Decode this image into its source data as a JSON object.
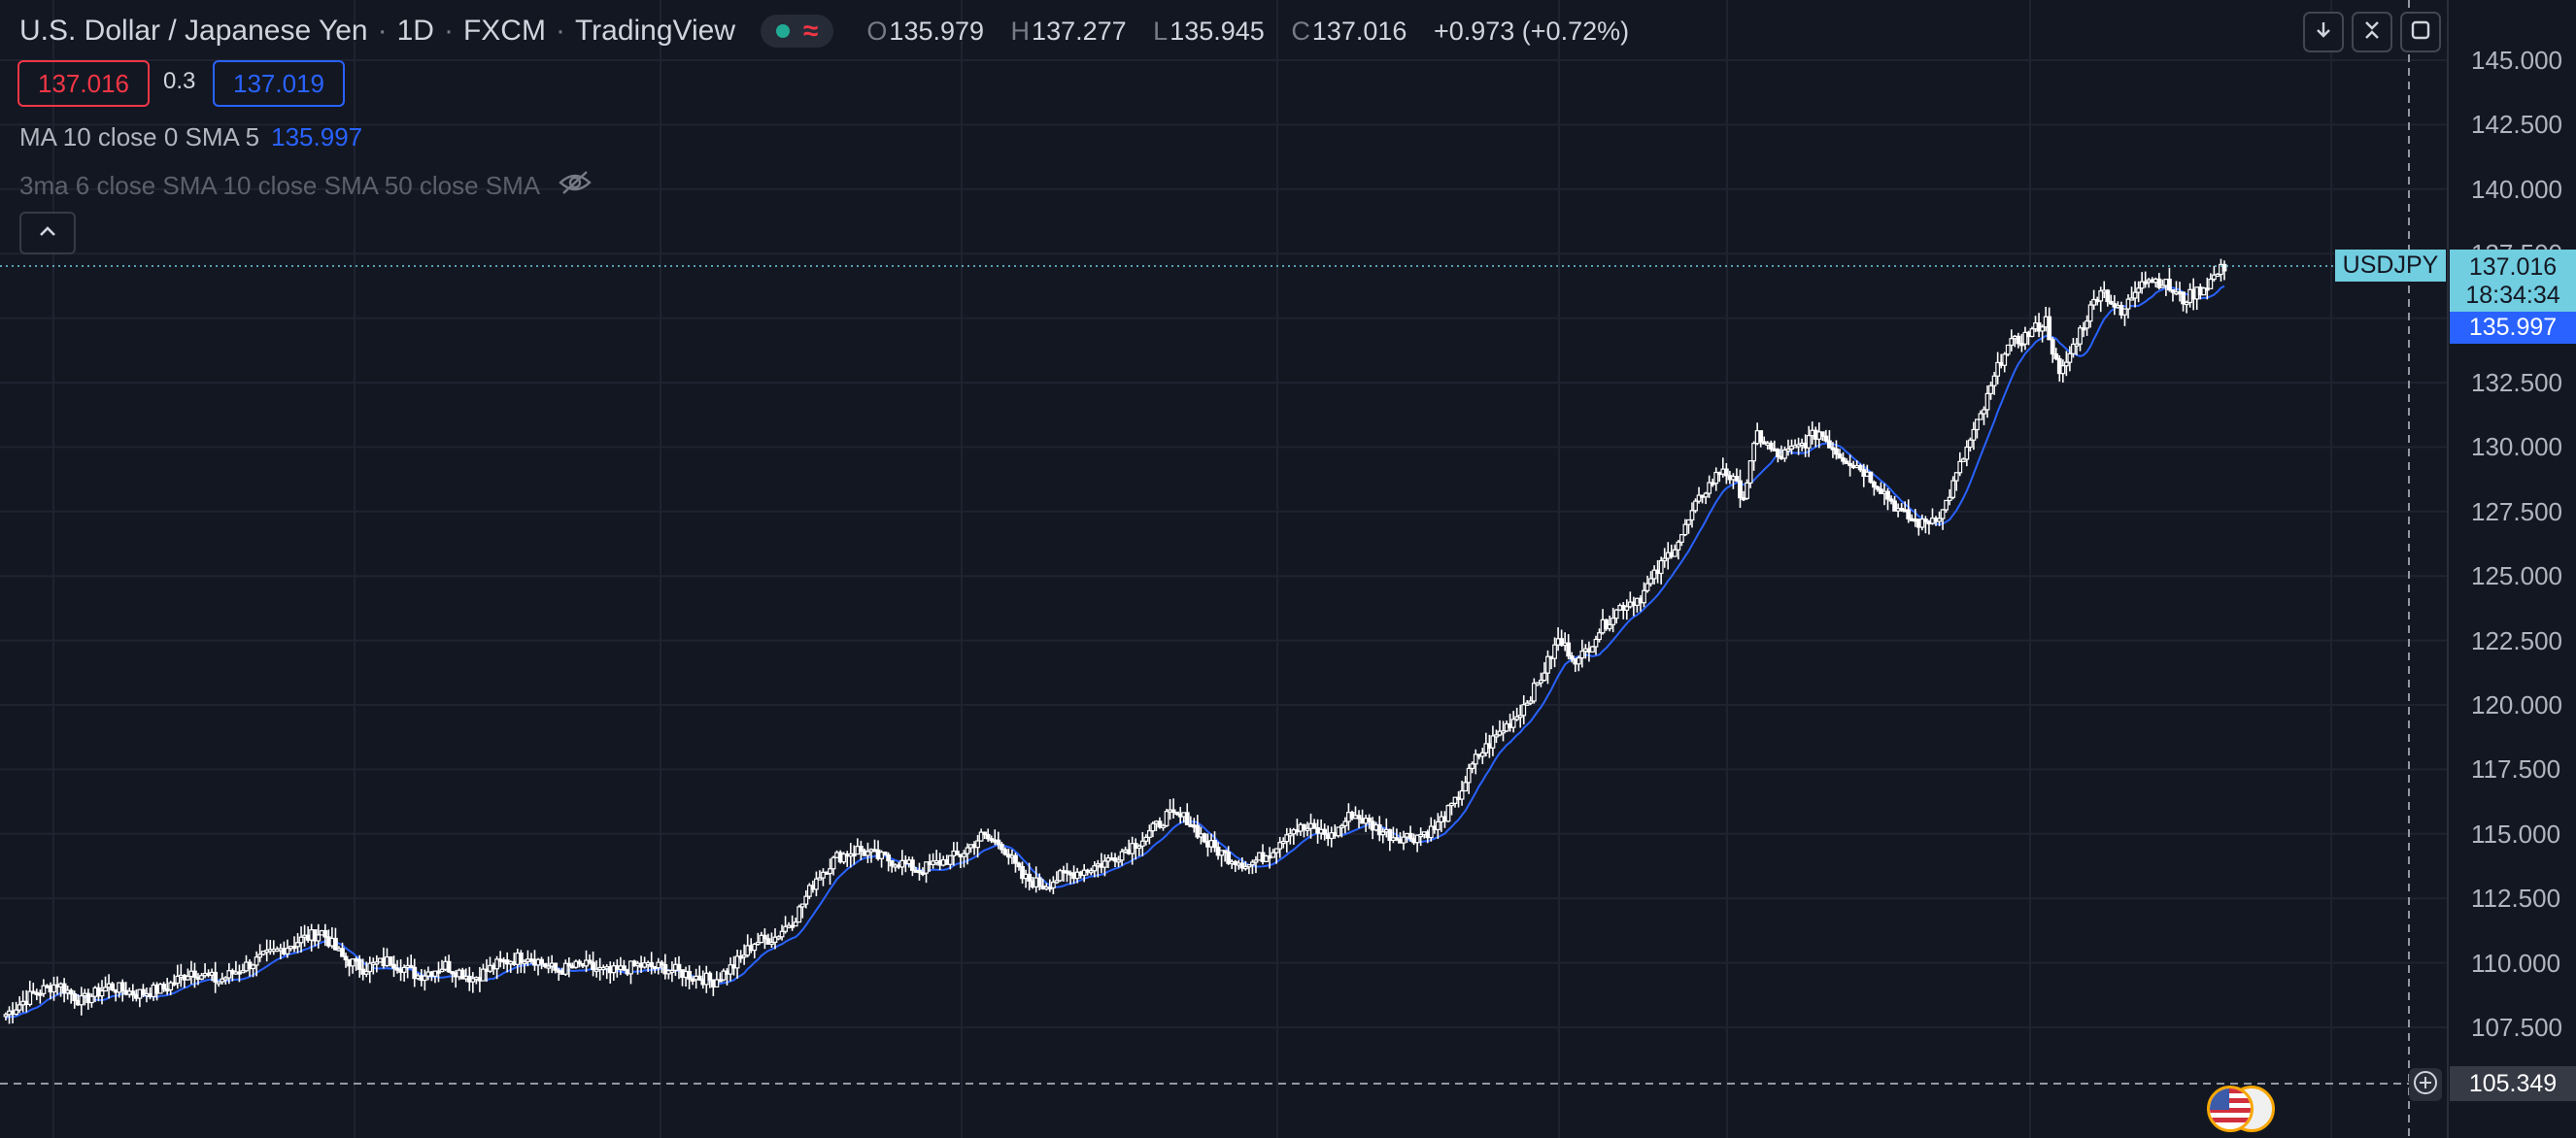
{
  "header": {
    "symbol_name": "U.S. Dollar / Japanese Yen",
    "interval": "1D",
    "exchange": "FXCM",
    "source": "TradingView",
    "ohlc": {
      "open_label": "O",
      "open": "135.979",
      "high_label": "H",
      "high": "137.277",
      "low_label": "L",
      "low": "135.945",
      "close_label": "C",
      "close": "137.016",
      "change": "+0.973 (+0.72%)"
    }
  },
  "trade": {
    "sell_price": "137.016",
    "spread": "0.3",
    "buy_price": "137.019"
  },
  "indicators": {
    "ma_label": "MA 10 close 0 SMA 5",
    "ma_value": "135.997",
    "ma3_label": "3ma 6 close SMA 10 close SMA 50 close SMA"
  },
  "price_axis": {
    "ticks": [
      "145.000",
      "142.500",
      "140.000",
      "137.500",
      "135.000",
      "132.500",
      "130.000",
      "127.500",
      "125.000",
      "122.500",
      "120.000",
      "117.500",
      "115.000",
      "112.500",
      "110.000",
      "107.500"
    ],
    "last_price_symbol": "USDJPY",
    "last_price": "137.016",
    "countdown": "18:34:34",
    "ma_price": "135.997",
    "crosshair_price": "105.349"
  },
  "colors": {
    "background": "#131722",
    "candle_up": "#ffffff",
    "candle_down": "#ffffff",
    "ma_line": "#2962ff",
    "last_price_tag": "#71cde0",
    "sell": "#f23645",
    "buy": "#2962ff"
  },
  "icons": {
    "market_status": "green-dot-icon",
    "delayed": "wave-icon",
    "hide_indicator": "eye-off-icon",
    "collapse": "chevron-up-icon",
    "toolbar": [
      "download-icon",
      "collapse-icon",
      "fullscreen-icon"
    ],
    "add": "plus-circle-icon",
    "event": "us-flag-icon"
  },
  "chart_data": {
    "type": "candlestick",
    "title": "U.S. Dollar / Japanese Yen",
    "ylim": [
      104.0,
      146.5
    ],
    "y_ticks": [
      107.5,
      110,
      112.5,
      115,
      117.5,
      120,
      122.5,
      125,
      127.5,
      130,
      132.5,
      135,
      137.5,
      140,
      142.5,
      145
    ],
    "grid": true,
    "series_closes": [
      [
        0,
        108.0
      ],
      [
        8,
        108.8
      ],
      [
        15,
        109.2
      ],
      [
        22,
        108.5
      ],
      [
        30,
        109.1
      ],
      [
        38,
        108.8
      ],
      [
        46,
        109.0
      ],
      [
        54,
        109.7
      ],
      [
        62,
        109.3
      ],
      [
        70,
        109.9
      ],
      [
        78,
        110.4
      ],
      [
        86,
        110.9
      ],
      [
        92,
        111.2
      ],
      [
        98,
        110.2
      ],
      [
        104,
        109.8
      ],
      [
        112,
        110.1
      ],
      [
        120,
        109.5
      ],
      [
        128,
        109.9
      ],
      [
        136,
        109.4
      ],
      [
        144,
        110.0
      ],
      [
        152,
        110.3
      ],
      [
        160,
        109.7
      ],
      [
        168,
        109.9
      ],
      [
        176,
        109.6
      ],
      [
        184,
        109.9
      ],
      [
        192,
        109.8
      ],
      [
        200,
        109.5
      ],
      [
        206,
        109.3
      ],
      [
        212,
        109.9
      ],
      [
        218,
        110.8
      ],
      [
        224,
        111.0
      ],
      [
        230,
        111.8
      ],
      [
        236,
        113.3
      ],
      [
        242,
        114.1
      ],
      [
        248,
        114.4
      ],
      [
        254,
        114.1
      ],
      [
        260,
        113.9
      ],
      [
        266,
        113.6
      ],
      [
        272,
        113.9
      ],
      [
        278,
        114.2
      ],
      [
        284,
        114.9
      ],
      [
        290,
        114.6
      ],
      [
        296,
        113.3
      ],
      [
        302,
        113.0
      ],
      [
        308,
        113.4
      ],
      [
        314,
        113.6
      ],
      [
        320,
        113.9
      ],
      [
        326,
        114.4
      ],
      [
        332,
        114.9
      ],
      [
        338,
        115.7
      ],
      [
        344,
        115.6
      ],
      [
        350,
        114.6
      ],
      [
        356,
        114.1
      ],
      [
        362,
        113.8
      ],
      [
        368,
        114.3
      ],
      [
        374,
        115.2
      ],
      [
        380,
        115.2
      ],
      [
        386,
        114.9
      ],
      [
        392,
        115.8
      ],
      [
        398,
        115.3
      ],
      [
        404,
        114.9
      ],
      [
        410,
        114.9
      ],
      [
        416,
        115.2
      ],
      [
        422,
        116.2
      ],
      [
        428,
        117.9
      ],
      [
        434,
        118.8
      ],
      [
        440,
        119.6
      ],
      [
        446,
        120.8
      ],
      [
        452,
        122.5
      ],
      [
        458,
        121.7
      ],
      [
        464,
        122.9
      ],
      [
        470,
        123.8
      ],
      [
        476,
        124.2
      ],
      [
        482,
        125.4
      ],
      [
        488,
        126.6
      ],
      [
        494,
        128.2
      ],
      [
        500,
        129.2
      ],
      [
        506,
        128.1
      ],
      [
        510,
        130.5
      ],
      [
        516,
        129.6
      ],
      [
        522,
        130.0
      ],
      [
        528,
        130.6
      ],
      [
        534,
        129.7
      ],
      [
        540,
        129.2
      ],
      [
        546,
        128.4
      ],
      [
        552,
        127.4
      ],
      [
        558,
        127.0
      ],
      [
        564,
        127.5
      ],
      [
        570,
        129.6
      ],
      [
        576,
        131.5
      ],
      [
        582,
        133.8
      ],
      [
        588,
        134.3
      ],
      [
        594,
        134.9
      ],
      [
        598,
        132.7
      ],
      [
        604,
        134.5
      ],
      [
        610,
        136.2
      ],
      [
        616,
        135.1
      ],
      [
        622,
        136.6
      ],
      [
        628,
        136.4
      ],
      [
        634,
        135.7
      ],
      [
        640,
        136.2
      ],
      [
        646,
        137.0
      ]
    ],
    "ma_series_name": "MA 10 close 0 SMA 5"
  }
}
